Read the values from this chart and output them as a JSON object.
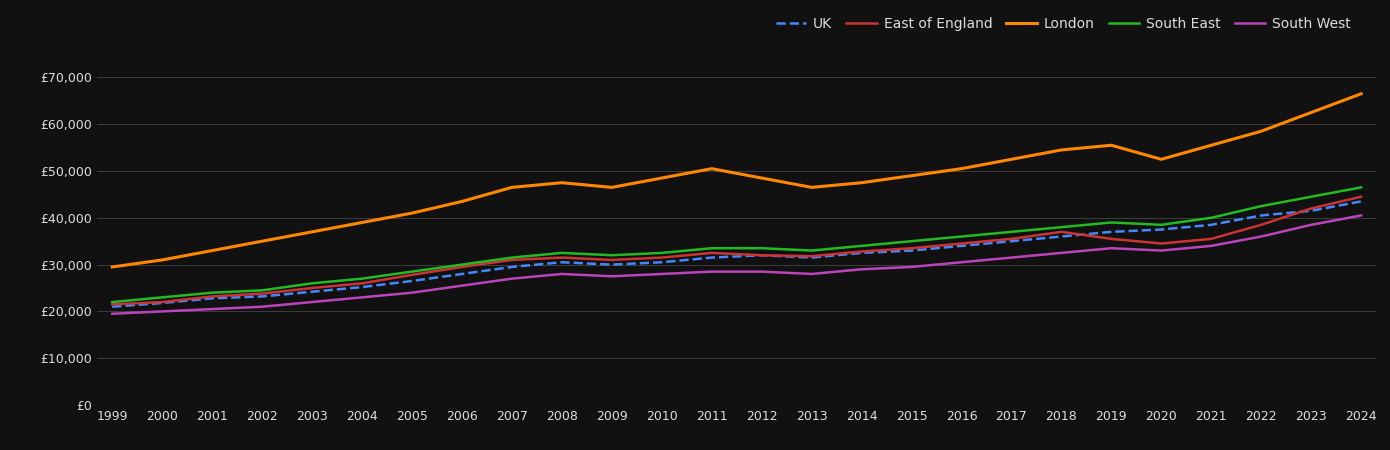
{
  "background_color": "#111111",
  "text_color": "#dddddd",
  "grid_color": "#444444",
  "years": [
    1999,
    2000,
    2001,
    2002,
    2003,
    2004,
    2005,
    2006,
    2007,
    2008,
    2009,
    2010,
    2011,
    2012,
    2013,
    2014,
    2015,
    2016,
    2017,
    2018,
    2019,
    2020,
    2021,
    2022,
    2023,
    2024
  ],
  "series": [
    {
      "name": "UK",
      "color": "#4488ff",
      "linestyle": "--",
      "linewidth": 1.8,
      "values": [
        21000,
        21800,
        22800,
        23200,
        24200,
        25200,
        26500,
        28000,
        29500,
        30500,
        30000,
        30500,
        31500,
        32000,
        31500,
        32500,
        33000,
        34000,
        35000,
        36000,
        37000,
        37500,
        38500,
        40500,
        41500,
        43500
      ]
    },
    {
      "name": "East of England",
      "color": "#cc3333",
      "linestyle": "-",
      "linewidth": 1.8,
      "values": [
        21500,
        22000,
        23200,
        23800,
        25000,
        26000,
        27800,
        29500,
        31000,
        31500,
        31000,
        31500,
        32500,
        32000,
        31800,
        32800,
        33500,
        34500,
        35500,
        37000,
        35500,
        34500,
        35500,
        38500,
        42000,
        44500
      ]
    },
    {
      "name": "London",
      "color": "#ff8800",
      "linestyle": "-",
      "linewidth": 2.2,
      "values": [
        29500,
        31000,
        33000,
        35000,
        37000,
        39000,
        41000,
        43500,
        46500,
        47500,
        46500,
        48500,
        50500,
        48500,
        46500,
        47500,
        49000,
        50500,
        52500,
        54500,
        55500,
        52500,
        55500,
        58500,
        62500,
        66500
      ]
    },
    {
      "name": "South East",
      "color": "#22bb22",
      "linestyle": "-",
      "linewidth": 1.8,
      "values": [
        22000,
        23000,
        24000,
        24500,
        26000,
        27000,
        28500,
        30000,
        31500,
        32500,
        32000,
        32500,
        33500,
        33500,
        33000,
        34000,
        35000,
        36000,
        37000,
        38000,
        39000,
        38500,
        40000,
        42500,
        44500,
        46500
      ]
    },
    {
      "name": "South West",
      "color": "#bb44bb",
      "linestyle": "-",
      "linewidth": 1.8,
      "values": [
        19500,
        20000,
        20500,
        21000,
        22000,
        23000,
        24000,
        25500,
        27000,
        28000,
        27500,
        28000,
        28500,
        28500,
        28000,
        29000,
        29500,
        30500,
        31500,
        32500,
        33500,
        33000,
        34000,
        36000,
        38500,
        40500
      ]
    }
  ],
  "ylim": [
    0,
    75000
  ],
  "yticks": [
    0,
    10000,
    20000,
    30000,
    40000,
    50000,
    60000,
    70000
  ],
  "figsize": [
    13.9,
    4.5
  ],
  "dpi": 100
}
